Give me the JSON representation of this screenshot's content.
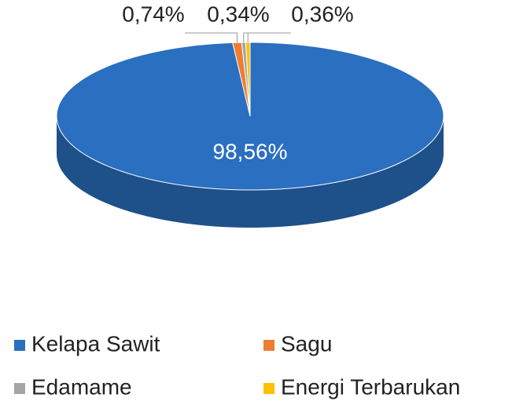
{
  "chart_data": {
    "type": "pie",
    "categories": [
      "Kelapa Sawit",
      "Sagu",
      "Edamame",
      "Energi Terbarukan"
    ],
    "values": [
      98.56,
      0.74,
      0.34,
      0.36
    ],
    "value_labels": [
      "98,56%",
      "0,74%",
      "0,34%",
      "0,36%"
    ],
    "colors": [
      "#2a6fc0",
      "#ed7d31",
      "#a5a5a5",
      "#ffc000"
    ],
    "legend": "bottom"
  }
}
